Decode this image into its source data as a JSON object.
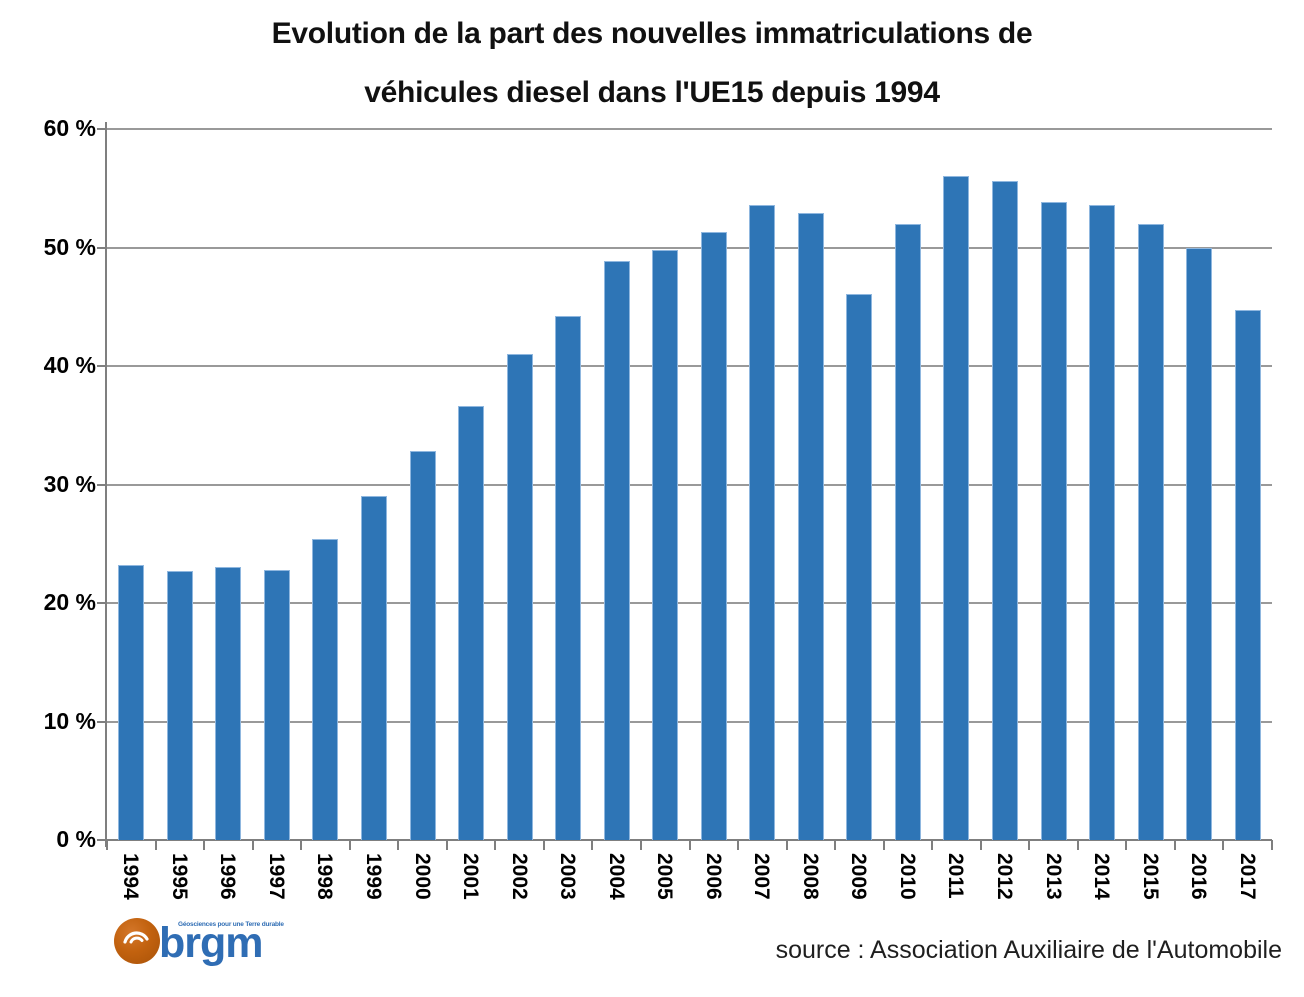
{
  "title": {
    "line1": "Evolution de la part des nouvelles immatriculations de",
    "line2": "véhicules diesel dans l'UE15 depuis 1994"
  },
  "chart_data": {
    "type": "bar",
    "title": "Evolution de la part des nouvelles immatriculations de véhicules diesel dans l'UE15 depuis 1994",
    "categories": [
      "1994",
      "1995",
      "1996",
      "1997",
      "1998",
      "1999",
      "2000",
      "2001",
      "2002",
      "2003",
      "2004",
      "2005",
      "2006",
      "2007",
      "2008",
      "2009",
      "2010",
      "2011",
      "2012",
      "2013",
      "2014",
      "2015",
      "2016",
      "2017"
    ],
    "values": [
      23.2,
      22.7,
      23.0,
      22.8,
      25.4,
      29.0,
      32.8,
      36.6,
      41.0,
      44.2,
      48.9,
      49.8,
      51.3,
      53.6,
      52.9,
      46.1,
      52.0,
      56.0,
      55.6,
      53.8,
      53.6,
      52.0,
      50.0,
      44.7
    ],
    "unit": "%",
    "xlabel": "",
    "ylabel": "",
    "ylim": [
      0,
      60
    ],
    "ytick_step": 10,
    "ytick_labels": [
      "0 %",
      "10 %",
      "20 %",
      "30 %",
      "40 %",
      "50 %",
      "60 %"
    ],
    "grid": true,
    "legend": "none",
    "bar_color": "#2e75b6",
    "bar_border_color": "#8fb7df",
    "gridline_color": "#999999",
    "axis_color": "#7f7f7f"
  },
  "source": {
    "label": "source : Association Auxiliaire de l'Automobile"
  },
  "logo": {
    "text": "brgm",
    "tagline": "Géosciences pour une Terre durable"
  }
}
